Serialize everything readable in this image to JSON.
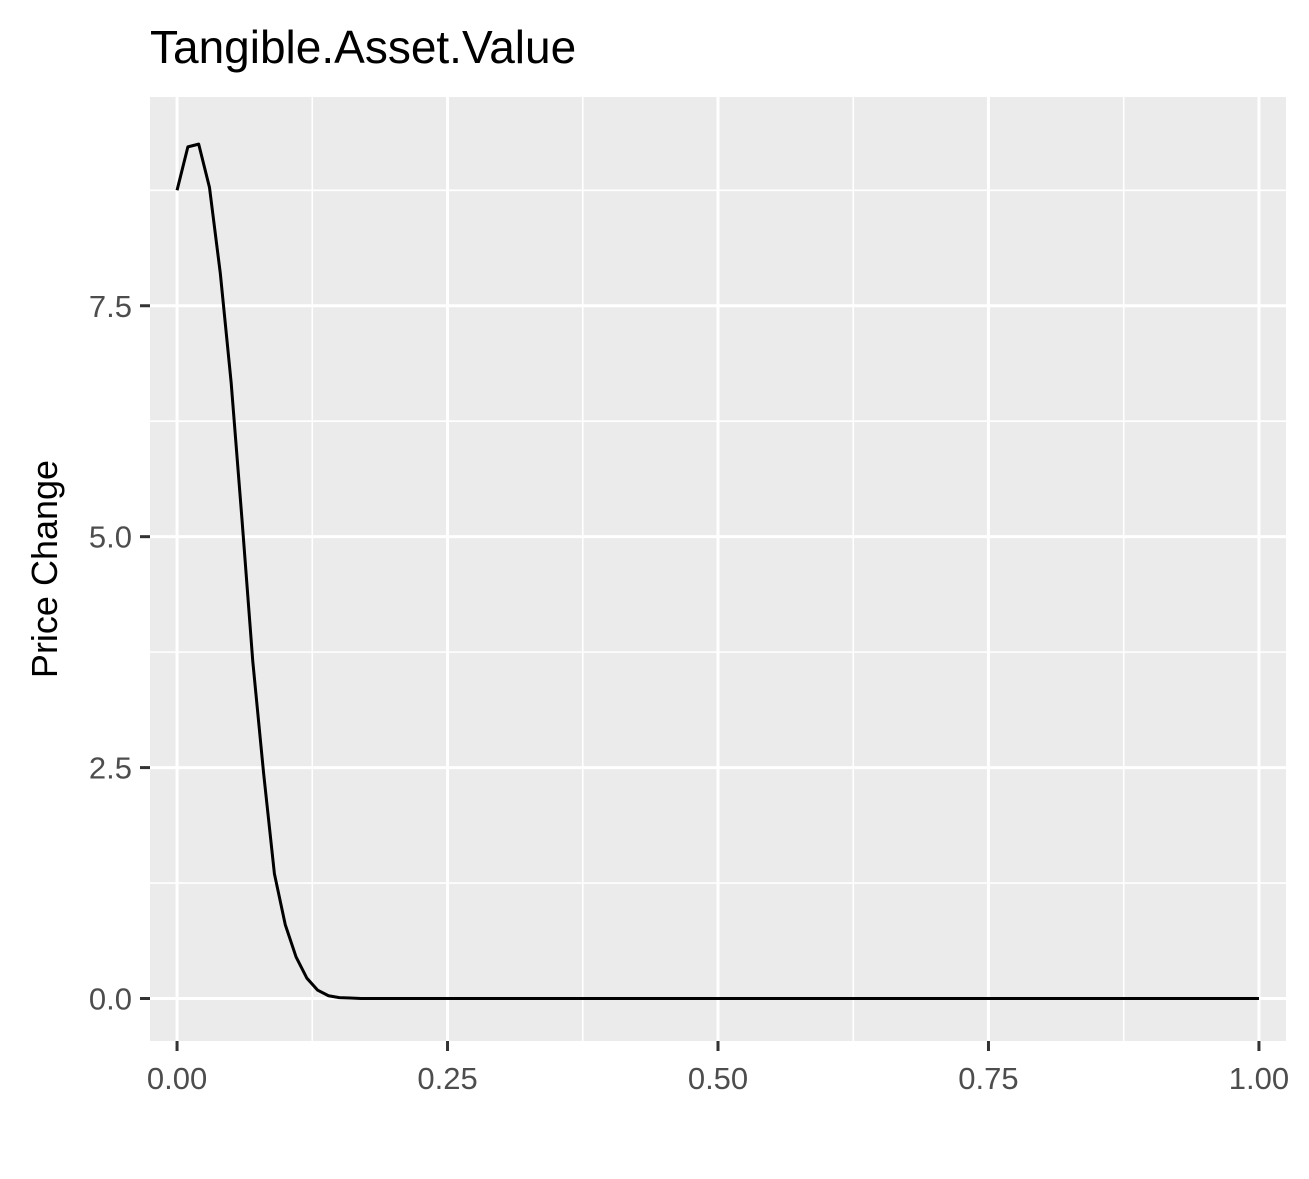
{
  "chart_data": {
    "type": "line",
    "title": "Tangible.Asset.Value",
    "xlabel": "",
    "ylabel": "Price Change",
    "xlim": [
      -0.025,
      1.025
    ],
    "ylim": [
      -0.46,
      9.76
    ],
    "x_ticks": [
      0.0,
      0.25,
      0.5,
      0.75,
      1.0
    ],
    "x_tick_labels": [
      "0.00",
      "0.25",
      "0.50",
      "0.75",
      "1.00"
    ],
    "y_ticks": [
      0.0,
      2.5,
      5.0,
      7.5
    ],
    "y_tick_labels": [
      "0.0",
      "2.5",
      "5.0",
      "7.5"
    ],
    "grid": true,
    "legend": "none",
    "colors": {
      "panel": "#ebebeb",
      "grid": "#ffffff",
      "line": "#000000"
    },
    "series": [
      {
        "x": [
          0.0,
          0.01,
          0.02,
          0.03,
          0.04,
          0.05,
          0.06,
          0.07,
          0.08,
          0.09,
          0.1,
          0.11,
          0.12,
          0.13,
          0.14,
          0.15,
          0.16,
          0.17,
          0.18,
          0.2,
          0.25,
          0.3,
          0.4,
          0.5,
          0.6,
          0.7,
          0.8,
          0.9,
          1.0
        ],
        "values": [
          8.75,
          9.22,
          9.25,
          8.78,
          7.85,
          6.67,
          5.19,
          3.65,
          2.44,
          1.35,
          0.8,
          0.45,
          0.22,
          0.09,
          0.03,
          0.01,
          0.005,
          0.0,
          0.0,
          0.0,
          0.0,
          0.0,
          0.0,
          0.0,
          0.0,
          0.0,
          0.0,
          0.0,
          0.0
        ]
      }
    ]
  }
}
